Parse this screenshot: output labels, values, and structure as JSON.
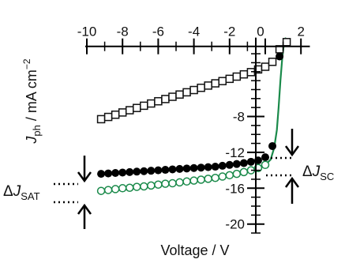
{
  "chart_data": {
    "type": "scatter",
    "xlabel": "Voltage / V",
    "ylabel_main": "J",
    "ylabel_sub": "ph",
    "ylabel_unit": " / mA cm",
    "ylabel_exp": "−2",
    "xlim": [
      -10,
      2.5
    ],
    "ylim": [
      -21,
      0.8
    ],
    "x_ticks": [
      -10,
      -8,
      -6,
      -4,
      -2,
      0,
      2
    ],
    "y_ticks": [
      -8,
      -12,
      -16,
      -20
    ],
    "x_tick_labels": [
      "-10",
      "-8",
      "-6",
      "-4",
      "-2",
      "0",
      "2"
    ],
    "y_tick_labels": [
      "-8",
      "-12",
      "-16",
      "-20"
    ],
    "x_minor_step": 1,
    "y_minor_step": 1,
    "annotations": {
      "dj_sat_delta": "Δ",
      "dj_sat_j": "J",
      "dj_sat_sub": "SAT",
      "dj_sc_delta": "Δ",
      "dj_sc_j": "J",
      "dj_sc_sub": "SC"
    },
    "series": [
      {
        "marker": "open-square",
        "color": "#111111",
        "x": [
          -9.2,
          -8.8,
          -8.4,
          -8.0,
          -7.6,
          -7.2,
          -6.8,
          -6.4,
          -6.0,
          -5.6,
          -5.2,
          -4.8,
          -4.4,
          -4.0,
          -3.6,
          -3.2,
          -2.8,
          -2.4,
          -2.0,
          -1.6,
          -1.2,
          -0.8,
          -0.4,
          0.0,
          0.4,
          0.8,
          1.2
        ],
        "y": [
          -8.3,
          -8.05,
          -7.8,
          -7.55,
          -7.3,
          -7.05,
          -6.8,
          -6.55,
          -6.3,
          -6.05,
          -5.8,
          -5.55,
          -5.3,
          -5.05,
          -4.8,
          -4.55,
          -4.3,
          -4.05,
          -3.8,
          -3.55,
          -3.3,
          -3.05,
          -2.75,
          -2.45,
          -1.9,
          -0.5,
          0.3
        ]
      },
      {
        "marker": "filled-circle",
        "color": "#000000",
        "x": [
          -9.2,
          -8.8,
          -8.4,
          -8.0,
          -7.6,
          -7.2,
          -6.8,
          -6.4,
          -6.0,
          -5.6,
          -5.2,
          -4.8,
          -4.4,
          -4.0,
          -3.6,
          -3.2,
          -2.8,
          -2.4,
          -2.0,
          -1.6,
          -1.2,
          -0.8,
          -0.4,
          0.0,
          0.4,
          0.8
        ],
        "y": [
          -14.4,
          -14.35,
          -14.3,
          -14.25,
          -14.2,
          -14.15,
          -14.1,
          -14.05,
          -14.0,
          -13.95,
          -13.9,
          -13.85,
          -13.8,
          -13.75,
          -13.7,
          -13.65,
          -13.6,
          -13.5,
          -13.4,
          -13.3,
          -13.2,
          -13.05,
          -12.9,
          -12.55,
          -11.3,
          -1.3
        ]
      },
      {
        "marker": "open-circle",
        "color": "#1a8a4a",
        "x": [
          -9.2,
          -8.8,
          -8.4,
          -8.0,
          -7.6,
          -7.2,
          -6.8,
          -6.4,
          -6.0,
          -5.6,
          -5.2,
          -4.8,
          -4.4,
          -4.0,
          -3.6,
          -3.2,
          -2.8,
          -2.4,
          -2.0,
          -1.6,
          -1.2,
          -0.8,
          -0.4,
          0.0
        ],
        "y": [
          -16.3,
          -16.2,
          -16.1,
          -16.0,
          -15.95,
          -15.85,
          -15.8,
          -15.7,
          -15.6,
          -15.5,
          -15.45,
          -15.35,
          -15.25,
          -15.15,
          -15.05,
          -14.95,
          -14.85,
          -14.7,
          -14.55,
          -14.4,
          -14.2,
          -14.0,
          -13.75,
          -13.4
        ]
      },
      {
        "marker": "line",
        "color": "#1a8a4a",
        "x": [
          -9.2,
          -7.0,
          -5.0,
          -3.0,
          -1.5,
          -0.5,
          0.0,
          0.3,
          0.5,
          0.65,
          0.75,
          0.85,
          0.95,
          1.05,
          1.15
        ],
        "y": [
          -16.3,
          -15.85,
          -15.4,
          -14.9,
          -14.4,
          -13.85,
          -13.4,
          -12.8,
          -11.5,
          -9.5,
          -7.0,
          -4.0,
          -1.5,
          0.2,
          0.8
        ]
      }
    ]
  }
}
